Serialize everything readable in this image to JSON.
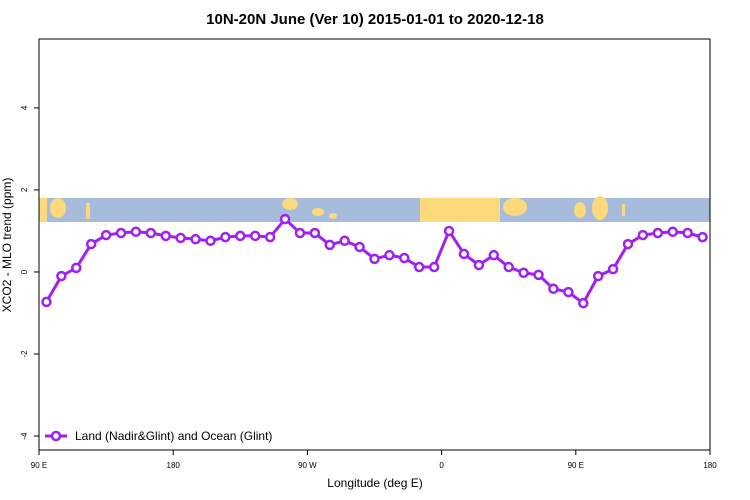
{
  "chart_data": {
    "type": "line",
    "title": "10N-20N June (Ver 10)   2015-01-01 to 2020-12-18",
    "x_label": "Longitude (deg E)",
    "y_label": "XCO2 - MLO trend (ppm)",
    "xlim": [
      90,
      540
    ],
    "ylim": [
      -4.34,
      5.68
    ],
    "xticks": [
      {
        "value": 90,
        "label": "90 E"
      },
      180,
      {
        "value": 270,
        "label": "90 W"
      },
      {
        "value": 360,
        "label": "0"
      },
      {
        "value": 450,
        "label": "90 E"
      },
      180
    ],
    "yticks": [
      -4,
      -2,
      0,
      2,
      4
    ],
    "x": [
      95,
      105,
      115,
      125,
      135,
      145,
      155,
      165,
      175,
      185,
      195,
      205,
      215,
      225,
      235,
      245,
      255,
      265,
      275,
      285,
      295,
      305,
      315,
      325,
      335,
      345,
      355,
      365,
      375,
      385,
      395,
      405,
      415,
      425,
      435,
      445,
      455,
      465,
      475,
      485,
      495,
      505,
      515,
      525,
      535
    ],
    "series": [
      {
        "name": "Land (Nadir&Glint) and Ocean (Glint)",
        "color": "#a020f0",
        "values": [
          -0.73,
          -0.1,
          0.1,
          0.68,
          0.9,
          0.95,
          0.98,
          0.95,
          0.88,
          0.83,
          0.8,
          0.76,
          0.85,
          0.88,
          0.88,
          0.85,
          1.29,
          0.95,
          0.95,
          0.66,
          0.76,
          0.61,
          0.32,
          0.41,
          0.34,
          0.12,
          0.12,
          1.0,
          0.44,
          0.17,
          0.41,
          0.12,
          -0.02,
          -0.07,
          -0.41,
          -0.49,
          -0.76,
          -0.1,
          0.07,
          0.68,
          0.9,
          0.95,
          0.98,
          0.95,
          0.85
        ]
      }
    ],
    "legend": "bottom-left"
  }
}
